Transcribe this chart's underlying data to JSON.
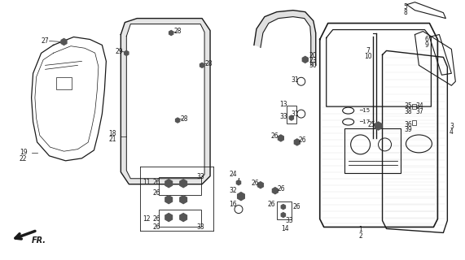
{
  "bg_color": "#ffffff",
  "line_color": "#1a1a1a",
  "gray_fill": "#d8d8d8",
  "light_gray": "#eeeeee"
}
